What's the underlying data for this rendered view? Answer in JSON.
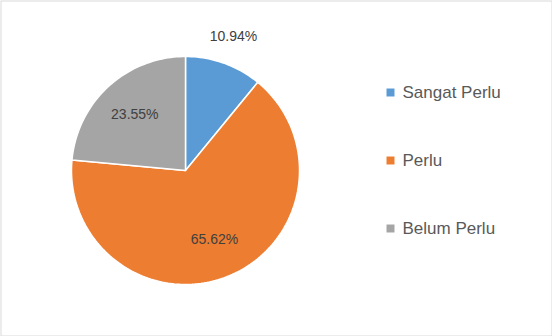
{
  "chart_data": {
    "type": "pie",
    "categories": [
      "Sangat Perlu",
      "Perlu",
      "Belum Perlu"
    ],
    "values": [
      10.94,
      65.62,
      23.55
    ],
    "value_labels": [
      "10.94%",
      "65.62%",
      "23.55%"
    ],
    "colors": [
      "#5B9BD5",
      "#ED7D31",
      "#A5A5A5"
    ],
    "data_labels": true,
    "legend": "right"
  }
}
